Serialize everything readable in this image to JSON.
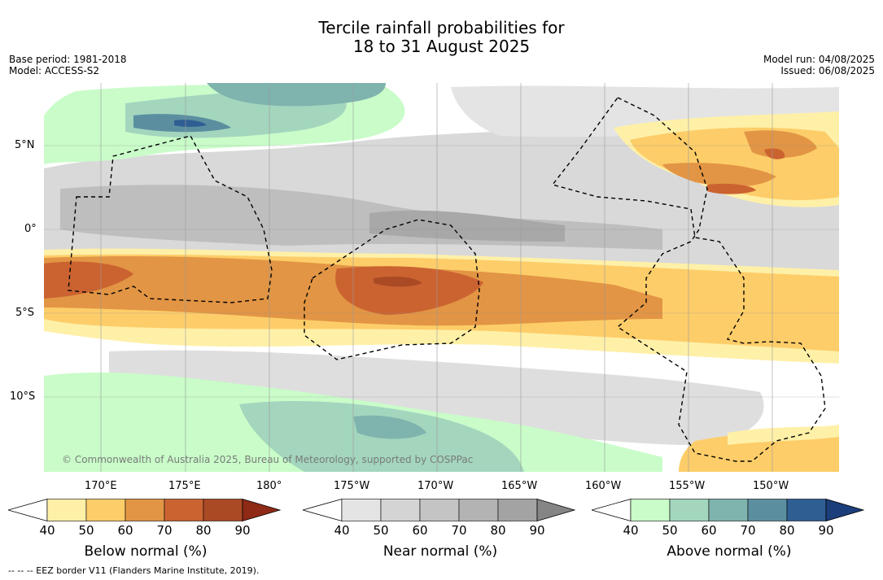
{
  "header": {
    "title_line1": "Tercile rainfall probabilities for",
    "title_line2": "18 to 31 August 2025",
    "base_period": "Base period: 1981-2018",
    "model": "Model: ACCESS-S2",
    "model_run": "Model run: 04/08/2025",
    "issued": "Issued: 06/08/2025"
  },
  "map": {
    "lat_labels": [
      "5°N",
      "0°",
      "5°S",
      "10°S"
    ],
    "lon_labels": [
      "170°E",
      "175°E",
      "180°",
      "175°W",
      "170°W",
      "165°W",
      "160°W",
      "155°W",
      "150°W"
    ],
    "copyright": "© Commonwealth of Australia 2025, Bureau of Meteorology, supported by COSPPac",
    "footnote": "--  --  -- EEZ border V11 (Flanders Marine Institute, 2019)."
  },
  "colorbars": [
    {
      "label": "Below normal (%)",
      "ticks": [
        "40",
        "50",
        "60",
        "70",
        "80",
        "90"
      ],
      "colors": [
        "#fff0a8",
        "#fdcd69",
        "#e29544",
        "#cb6331",
        "#aa4a25",
        "#8e2a16"
      ]
    },
    {
      "label": "Near normal (%)",
      "ticks": [
        "40",
        "50",
        "60",
        "70",
        "80",
        "90"
      ],
      "colors": [
        "#e4e4e4",
        "#d4d4d4",
        "#c4c4c4",
        "#b3b3b3",
        "#a3a3a3",
        "#858585"
      ]
    },
    {
      "label": "Above normal (%)",
      "ticks": [
        "40",
        "50",
        "60",
        "70",
        "80",
        "90"
      ],
      "colors": [
        "#c9fcc9",
        "#a3d6bd",
        "#7fb3ae",
        "#5b8fa0",
        "#2f5e92",
        "#1c3e7a"
      ]
    }
  ]
}
